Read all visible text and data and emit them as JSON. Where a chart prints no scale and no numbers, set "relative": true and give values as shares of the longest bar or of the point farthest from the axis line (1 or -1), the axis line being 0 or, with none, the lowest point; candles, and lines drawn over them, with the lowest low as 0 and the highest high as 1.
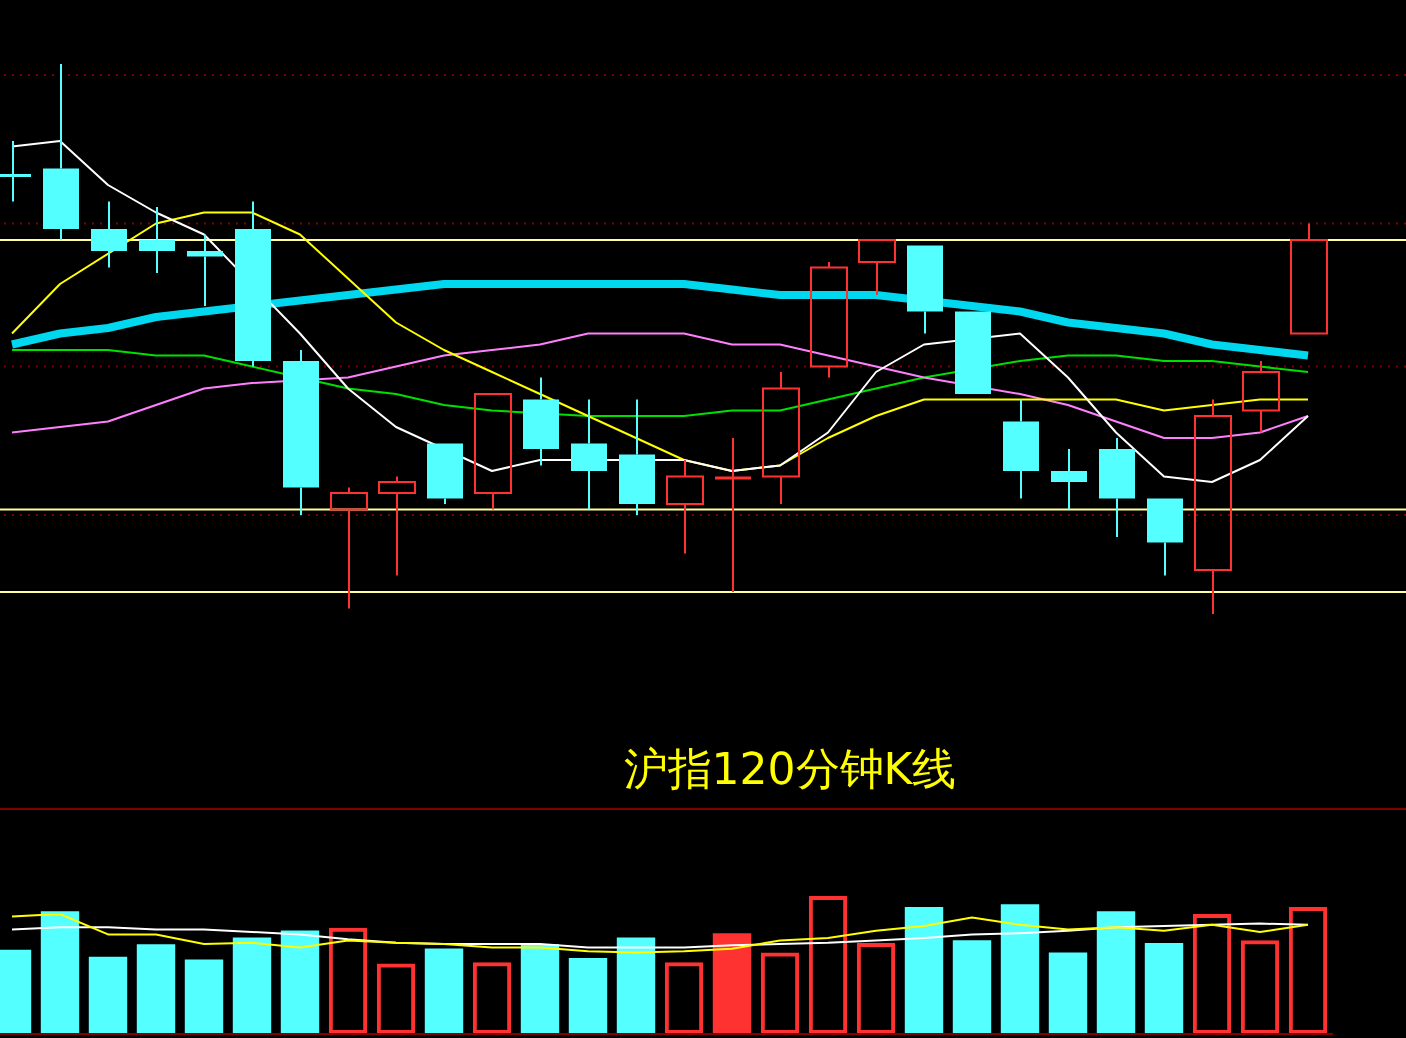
{
  "chart_data": [
    {
      "type": "candlestick",
      "title": "沪指120分钟K线",
      "relative": true,
      "categories": [
        null,
        null,
        null,
        null,
        null,
        null,
        null,
        null,
        null,
        null,
        null,
        null,
        null,
        null,
        null,
        null,
        null,
        null,
        null,
        null,
        null,
        null,
        null,
        null,
        null,
        null,
        null,
        null
      ],
      "ohlc": [
        [
          0.8,
          0.86,
          0.75,
          0.8
        ],
        [
          0.81,
          1.0,
          0.68,
          0.7
        ],
        [
          0.7,
          0.75,
          0.63,
          0.66
        ],
        [
          0.68,
          0.74,
          0.62,
          0.66
        ],
        [
          0.66,
          0.69,
          0.56,
          0.65
        ],
        [
          0.7,
          0.75,
          0.45,
          0.46
        ],
        [
          0.46,
          0.48,
          0.18,
          0.23
        ],
        [
          0.19,
          0.23,
          0.01,
          0.22
        ],
        [
          0.22,
          0.25,
          0.07,
          0.24
        ],
        [
          0.31,
          0.31,
          0.2,
          0.21
        ],
        [
          0.22,
          0.4,
          0.19,
          0.4
        ],
        [
          0.39,
          0.43,
          0.27,
          0.3
        ],
        [
          0.31,
          0.39,
          0.19,
          0.26
        ],
        [
          0.29,
          0.39,
          0.18,
          0.2
        ],
        [
          0.2,
          0.28,
          0.11,
          0.25
        ],
        [
          0.25,
          0.32,
          0.04,
          0.25
        ],
        [
          0.25,
          0.44,
          0.2,
          0.41
        ],
        [
          0.45,
          0.64,
          0.43,
          0.63
        ],
        [
          0.64,
          0.68,
          0.58,
          0.68
        ],
        [
          0.67,
          0.67,
          0.51,
          0.55
        ],
        [
          0.55,
          0.55,
          0.4,
          0.4
        ],
        [
          0.35,
          0.39,
          0.21,
          0.26
        ],
        [
          0.26,
          0.3,
          0.19,
          0.24
        ],
        [
          0.3,
          0.32,
          0.14,
          0.21
        ],
        [
          0.21,
          0.21,
          0.07,
          0.13
        ],
        [
          0.08,
          0.39,
          0.0,
          0.36
        ],
        [
          0.37,
          0.46,
          0.33,
          0.44
        ],
        [
          0.51,
          0.71,
          0.51,
          0.68
        ]
      ],
      "colors": [
        "#54ffff",
        "#54ffff",
        "#54ffff",
        "#54ffff",
        "#54ffff",
        "#54ffff",
        "#54ffff",
        "#ff3232",
        "#ff3232",
        "#54ffff",
        "#ff3232",
        "#54ffff",
        "#54ffff",
        "#54ffff",
        "#ff3232",
        "#ff3232",
        "#ff3232",
        "#ff3232",
        "#ff3232",
        "#54ffff",
        "#54ffff",
        "#54ffff",
        "#54ffff",
        "#54ffff",
        "#54ffff",
        "#ff3232",
        "#ff3232",
        "#ff3232"
      ],
      "series": [
        {
          "type": "line",
          "color": "#ffffff",
          "values": [
            0.85,
            0.86,
            0.78,
            0.73,
            0.69,
            null,
            0.51,
            0.41,
            0.34,
            null,
            0.26,
            0.28,
            null,
            null,
            0.28,
            0.26,
            0.27,
            0.33,
            0.44,
            0.49,
            null,
            0.51,
            0.43,
            0.33,
            0.25,
            0.24,
            0.28,
            0.36
          ]
        },
        {
          "type": "line",
          "color": "#ffff00",
          "values": [
            0.51,
            0.6,
            null,
            0.71,
            0.73,
            0.73,
            0.69,
            0.61,
            0.53,
            0.48,
            0.44,
            0.4,
            0.36,
            0.32,
            0.28,
            0.26,
            0.27,
            0.32,
            0.36,
            0.39,
            0.39,
            0.39,
            0.39,
            0.39,
            0.37,
            0.38,
            0.39,
            0.39
          ]
        },
        {
          "type": "line",
          "color": "#ff80ff",
          "values": [
            0.33,
            0.34,
            0.35,
            0.38,
            0.41,
            0.42,
            null,
            0.43,
            0.45,
            0.47,
            0.48,
            0.49,
            0.51,
            0.51,
            0.51,
            0.49,
            0.49,
            0.47,
            0.45,
            0.43,
            null,
            0.4,
            0.38,
            0.35,
            0.32,
            0.32,
            0.33,
            0.36
          ]
        },
        {
          "type": "line",
          "color": "#00e000",
          "values": [
            0.48,
            0.48,
            0.48,
            0.47,
            0.47,
            0.45,
            null,
            0.41,
            0.4,
            0.38,
            0.37,
            null,
            0.36,
            0.36,
            0.36,
            0.37,
            0.37,
            0.39,
            0.41,
            0.43,
            null,
            0.46,
            0.47,
            0.47,
            0.46,
            0.46,
            0.45,
            0.44
          ]
        },
        {
          "type": "line",
          "color": "#00d8f0",
          "values": [
            0.49,
            0.51,
            0.52,
            0.54,
            0.55,
            null,
            0.57,
            0.58,
            0.59,
            0.6,
            0.6,
            0.6,
            0.6,
            0.6,
            0.6,
            0.59,
            0.58,
            0.58,
            0.58,
            null,
            0.56,
            0.55,
            0.53,
            0.52,
            0.51,
            0.49,
            0.48,
            0.47
          ]
        }
      ],
      "ref_lines": [
        {
          "axis": "y",
          "value": 0.68,
          "color": "#ffff99",
          "line_style": "solid"
        },
        {
          "axis": "y",
          "value": 0.19,
          "color": "#ffff99",
          "line_style": "solid"
        },
        {
          "axis": "y",
          "value": 0.04,
          "color": "#ffff99",
          "line_style": "solid"
        },
        {
          "axis": "y",
          "value": 0.98,
          "color": "#800000",
          "line_style": "dotted"
        },
        {
          "axis": "y",
          "value": 0.71,
          "color": "#800000",
          "line_style": "dotted"
        },
        {
          "axis": "y",
          "value": 0.45,
          "color": "#800000",
          "line_style": "dotted"
        },
        {
          "axis": "y",
          "value": 0.18,
          "color": "#800000",
          "line_style": "dotted"
        }
      ],
      "legend": false,
      "marker": "none"
    },
    {
      "type": "bar",
      "relative": true,
      "categories": [
        null,
        null,
        null,
        null,
        null,
        null,
        null,
        null,
        null,
        null,
        null,
        null,
        null,
        null,
        null,
        null,
        null,
        null,
        null,
        null,
        null,
        null,
        null,
        null,
        null,
        null,
        null,
        null
      ],
      "values": [
        0.61,
        0.89,
        0.56,
        0.65,
        0.54,
        0.7,
        0.75,
        0.77,
        0.51,
        0.62,
        0.52,
        0.65,
        0.55,
        0.7,
        0.52,
        0.73,
        0.59,
        1.0,
        0.66,
        0.92,
        0.68,
        0.94,
        0.59,
        0.89,
        0.66,
        0.87,
        0.68,
        0.92
      ],
      "colors": [
        "#54ffff",
        "#54ffff",
        "#54ffff",
        "#54ffff",
        "#54ffff",
        "#54ffff",
        "#54ffff",
        "#ff3232",
        "#ff3232",
        "#54ffff",
        "#ff3232",
        "#54ffff",
        "#54ffff",
        "#54ffff",
        "#ff3232",
        "#ff3232",
        "#ff3232",
        "#ff3232",
        "#ff3232",
        "#54ffff",
        "#54ffff",
        "#54ffff",
        "#54ffff",
        "#54ffff",
        "#54ffff",
        "#ff3232",
        "#ff3232",
        "#ff3232"
      ],
      "legend": false
    },
    {
      "type": "line",
      "relative": true,
      "categories": [
        null,
        null,
        null,
        null,
        null,
        null,
        null,
        null,
        null,
        null,
        null,
        null,
        null,
        null,
        null,
        null,
        null,
        null,
        null,
        null,
        null,
        null,
        null,
        null,
        null,
        null,
        null,
        null
      ],
      "series": [
        {
          "color": "#ffff00",
          "values": [
            0.98,
            1.0,
            0.83,
            0.83,
            0.75,
            0.76,
            0.72,
            0.78,
            0.76,
            0.75,
            0.72,
            0.72,
            0.69,
            0.68,
            0.69,
            0.71,
            0.78,
            0.8,
            0.86,
            0.9,
            0.97,
            0.91,
            0.87,
            0.89,
            0.86,
            0.91,
            0.85,
            0.91
          ]
        },
        {
          "color": "#ffffff",
          "values": [
            0.87,
            0.89,
            0.89,
            0.87,
            0.87,
            0.85,
            0.83,
            0.79,
            0.76,
            0.75,
            0.75,
            0.75,
            0.72,
            0.72,
            0.72,
            0.74,
            0.75,
            0.76,
            0.78,
            0.8,
            0.83,
            0.84,
            0.86,
            0.89,
            0.9,
            0.91,
            0.92,
            0.91
          ]
        }
      ],
      "legend": false,
      "marker": "none"
    }
  ]
}
